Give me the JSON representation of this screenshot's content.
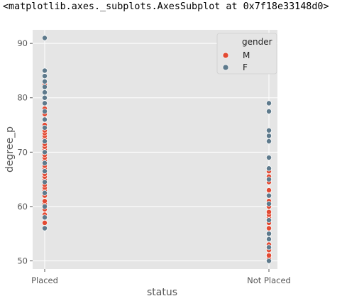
{
  "output_repr": "<matplotlib.axes._subplots.AxesSubplot at 0x7f18e33148d0>",
  "colors": {
    "background": "#e5e5e5",
    "grid": "#ffffff",
    "male": "#e24a33",
    "female": "#5e7a8c"
  },
  "chart_data": {
    "type": "scatter",
    "xlabel": "status",
    "ylabel": "degree_p",
    "categories": [
      "Placed",
      "Not Placed"
    ],
    "ylim": [
      48.5,
      92.5
    ],
    "yticks": [
      50,
      60,
      70,
      80,
      90
    ],
    "grid": true,
    "legend": {
      "title": "gender",
      "placement": "top-right"
    },
    "series": [
      {
        "name": "M",
        "points": [
          {
            "x": "Placed",
            "y": 57
          },
          {
            "x": "Placed",
            "y": 58.5
          },
          {
            "x": "Placed",
            "y": 59.5
          },
          {
            "x": "Placed",
            "y": 60.5
          },
          {
            "x": "Placed",
            "y": 61
          },
          {
            "x": "Placed",
            "y": 62
          },
          {
            "x": "Placed",
            "y": 63
          },
          {
            "x": "Placed",
            "y": 63.5
          },
          {
            "x": "Placed",
            "y": 64
          },
          {
            "x": "Placed",
            "y": 65
          },
          {
            "x": "Placed",
            "y": 65.5
          },
          {
            "x": "Placed",
            "y": 66
          },
          {
            "x": "Placed",
            "y": 66.5
          },
          {
            "x": "Placed",
            "y": 67
          },
          {
            "x": "Placed",
            "y": 67.5
          },
          {
            "x": "Placed",
            "y": 68
          },
          {
            "x": "Placed",
            "y": 68.5
          },
          {
            "x": "Placed",
            "y": 69
          },
          {
            "x": "Placed",
            "y": 69.5
          },
          {
            "x": "Placed",
            "y": 70
          },
          {
            "x": "Placed",
            "y": 70.5
          },
          {
            "x": "Placed",
            "y": 71
          },
          {
            "x": "Placed",
            "y": 71.5
          },
          {
            "x": "Placed",
            "y": 72
          },
          {
            "x": "Placed",
            "y": 72.5
          },
          {
            "x": "Placed",
            "y": 73
          },
          {
            "x": "Placed",
            "y": 73.5
          },
          {
            "x": "Placed",
            "y": 74
          },
          {
            "x": "Placed",
            "y": 75
          },
          {
            "x": "Placed",
            "y": 76
          },
          {
            "x": "Placed",
            "y": 77
          },
          {
            "x": "Placed",
            "y": 78
          },
          {
            "x": "Placed",
            "y": 80
          },
          {
            "x": "Placed",
            "y": 81
          },
          {
            "x": "Placed",
            "y": 82.5
          },
          {
            "x": "Placed",
            "y": 83
          },
          {
            "x": "Not Placed",
            "y": 50.5
          },
          {
            "x": "Not Placed",
            "y": 51
          },
          {
            "x": "Not Placed",
            "y": 52
          },
          {
            "x": "Not Placed",
            "y": 53
          },
          {
            "x": "Not Placed",
            "y": 54
          },
          {
            "x": "Not Placed",
            "y": 55
          },
          {
            "x": "Not Placed",
            "y": 56
          },
          {
            "x": "Not Placed",
            "y": 57
          },
          {
            "x": "Not Placed",
            "y": 58
          },
          {
            "x": "Not Placed",
            "y": 58.5
          },
          {
            "x": "Not Placed",
            "y": 59
          },
          {
            "x": "Not Placed",
            "y": 60
          },
          {
            "x": "Not Placed",
            "y": 61
          },
          {
            "x": "Not Placed",
            "y": 63
          },
          {
            "x": "Not Placed",
            "y": 64.5
          },
          {
            "x": "Not Placed",
            "y": 65.5
          },
          {
            "x": "Not Placed",
            "y": 66.5
          },
          {
            "x": "Not Placed",
            "y": 67
          }
        ]
      },
      {
        "name": "F",
        "points": [
          {
            "x": "Placed",
            "y": 56
          },
          {
            "x": "Placed",
            "y": 58
          },
          {
            "x": "Placed",
            "y": 60
          },
          {
            "x": "Placed",
            "y": 62.5
          },
          {
            "x": "Placed",
            "y": 64.5
          },
          {
            "x": "Placed",
            "y": 66.5
          },
          {
            "x": "Placed",
            "y": 68
          },
          {
            "x": "Placed",
            "y": 70
          },
          {
            "x": "Placed",
            "y": 72
          },
          {
            "x": "Placed",
            "y": 74.5
          },
          {
            "x": "Placed",
            "y": 76
          },
          {
            "x": "Placed",
            "y": 77.5
          },
          {
            "x": "Placed",
            "y": 79
          },
          {
            "x": "Placed",
            "y": 80
          },
          {
            "x": "Placed",
            "y": 81
          },
          {
            "x": "Placed",
            "y": 82
          },
          {
            "x": "Placed",
            "y": 83
          },
          {
            "x": "Placed",
            "y": 84
          },
          {
            "x": "Placed",
            "y": 85
          },
          {
            "x": "Placed",
            "y": 91
          },
          {
            "x": "Not Placed",
            "y": 50
          },
          {
            "x": "Not Placed",
            "y": 52.5
          },
          {
            "x": "Not Placed",
            "y": 54
          },
          {
            "x": "Not Placed",
            "y": 55
          },
          {
            "x": "Not Placed",
            "y": 57.5
          },
          {
            "x": "Not Placed",
            "y": 60.5
          },
          {
            "x": "Not Placed",
            "y": 62
          },
          {
            "x": "Not Placed",
            "y": 65
          },
          {
            "x": "Not Placed",
            "y": 67
          },
          {
            "x": "Not Placed",
            "y": 69
          },
          {
            "x": "Not Placed",
            "y": 72
          },
          {
            "x": "Not Placed",
            "y": 73
          },
          {
            "x": "Not Placed",
            "y": 74
          },
          {
            "x": "Not Placed",
            "y": 77.5
          },
          {
            "x": "Not Placed",
            "y": 79
          }
        ]
      }
    ]
  }
}
